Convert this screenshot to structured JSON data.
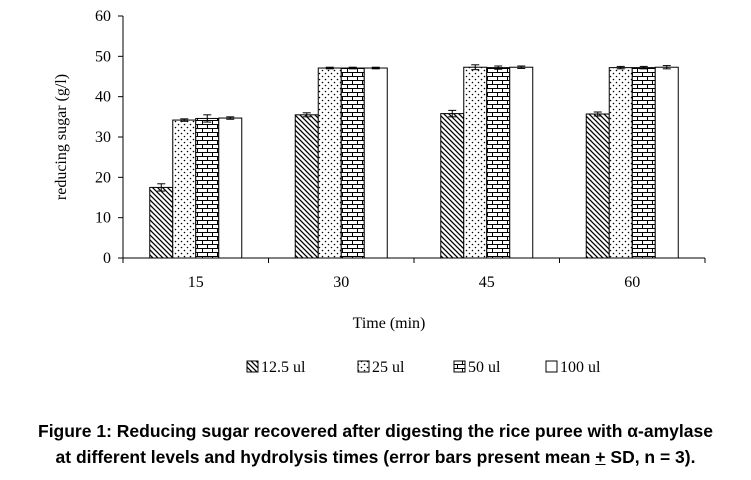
{
  "chart_data": {
    "type": "bar",
    "title": "",
    "xlabel": "Time (min)",
    "ylabel": "reducing sugar (g/l)",
    "ylim": [
      0,
      60
    ],
    "yticks": [
      "0",
      "10",
      "20",
      "30",
      "40",
      "50",
      "60"
    ],
    "categories": [
      "15",
      "30",
      "45",
      "60"
    ],
    "series": [
      {
        "name": "12.5 ul",
        "pattern": "diagonal-hatch",
        "values": [
          17.5,
          35.5,
          35.8,
          35.7
        ],
        "errors": [
          0.9,
          0.5,
          0.8,
          0.5
        ]
      },
      {
        "name": "25 ul",
        "pattern": "dots",
        "values": [
          34.2,
          47.1,
          47.3,
          47.2
        ],
        "errors": [
          0.3,
          0.2,
          0.6,
          0.3
        ]
      },
      {
        "name": "50 ul",
        "pattern": "brick",
        "values": [
          34.6,
          47.1,
          47.2,
          47.2
        ],
        "errors": [
          0.9,
          0.2,
          0.4,
          0.3
        ]
      },
      {
        "name": "100 ul",
        "pattern": "solid-white",
        "values": [
          34.7,
          47.1,
          47.3,
          47.3
        ],
        "errors": [
          0.3,
          0.2,
          0.3,
          0.4
        ]
      }
    ],
    "grid": false,
    "legend_position": "bottom"
  },
  "caption": {
    "line1": "Figure 1: Reducing sugar recovered after digesting the rice puree with α-amylase",
    "line2": "at different levels and hydrolysis times (error bars present mean + SD, n = 3)."
  }
}
